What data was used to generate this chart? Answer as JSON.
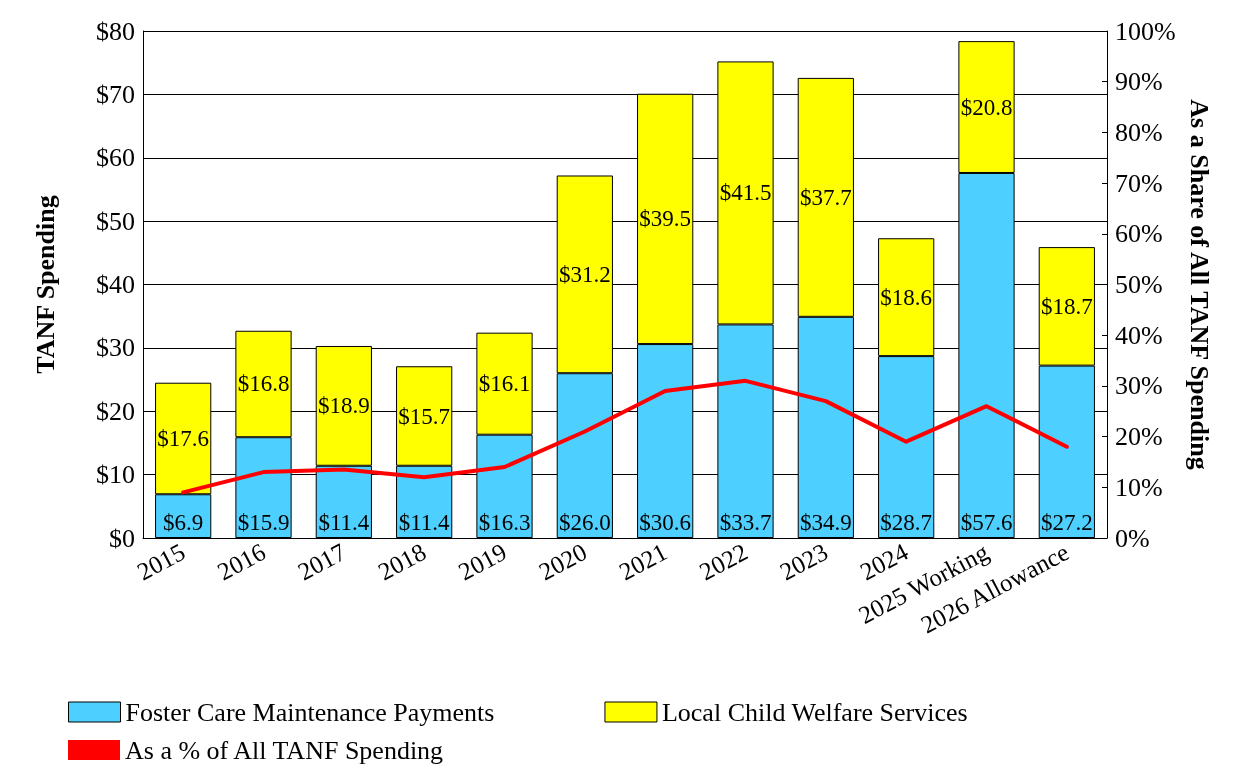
{
  "chart_data": {
    "type": "bar",
    "stacked": true,
    "categories": [
      "2015",
      "2016",
      "2017",
      "2018",
      "2019",
      "2020",
      "2021",
      "2022",
      "2023",
      "2024",
      "2025 Working",
      "2026 Allowance"
    ],
    "ylabel": "TANF Spending",
    "y2label": "As a Share of All TANF Spending",
    "ylim": [
      0,
      80
    ],
    "yticks": [
      {
        "value": 0,
        "label": "$0"
      },
      {
        "value": 10,
        "label": "$10"
      },
      {
        "value": 20,
        "label": "$20"
      },
      {
        "value": 30,
        "label": "$30"
      },
      {
        "value": 40,
        "label": "$40"
      },
      {
        "value": 50,
        "label": "$50"
      },
      {
        "value": 60,
        "label": "$60"
      },
      {
        "value": 70,
        "label": "$70"
      },
      {
        "value": 80,
        "label": "$80"
      }
    ],
    "y2lim": [
      0,
      100
    ],
    "y2ticks": [
      {
        "value": 0,
        "label": "0%"
      },
      {
        "value": 10,
        "label": "10%"
      },
      {
        "value": 20,
        "label": "20%"
      },
      {
        "value": 30,
        "label": "30%"
      },
      {
        "value": 40,
        "label": "40%"
      },
      {
        "value": 50,
        "label": "50%"
      },
      {
        "value": 60,
        "label": "60%"
      },
      {
        "value": 70,
        "label": "70%"
      },
      {
        "value": 80,
        "label": "80%"
      },
      {
        "value": 90,
        "label": "90%"
      },
      {
        "value": 100,
        "label": "100%"
      }
    ],
    "grid": "y",
    "legend": "bottom",
    "marker": "none",
    "series": [
      {
        "name": "Foster Care Maintenance Payments",
        "color": "#4dd0ff",
        "values": [
          6.9,
          15.9,
          11.4,
          11.4,
          16.3,
          26.0,
          30.6,
          33.7,
          34.9,
          28.7,
          57.6,
          27.2
        ],
        "value_labels": [
          "$6.9",
          "$15.9",
          "$11.4",
          "$11.4",
          "$16.3",
          "$26.0",
          "$30.6",
          "$33.7",
          "$34.9",
          "$28.7",
          "$57.6",
          "$27.2"
        ]
      },
      {
        "name": "Local Child Welfare Services",
        "color": "#ffff00",
        "values": [
          17.6,
          16.8,
          18.9,
          15.7,
          16.1,
          31.2,
          39.5,
          41.5,
          37.7,
          18.6,
          20.8,
          18.7
        ],
        "value_labels": [
          "$17.6",
          "$16.8",
          "$18.9",
          "$15.7",
          "$16.1",
          "$31.2",
          "$39.5",
          "$41.5",
          "$37.7",
          "$18.6",
          "$20.8",
          "$18.7"
        ]
      },
      {
        "name": "As a % of All TANF Spending",
        "type": "line",
        "axis": "y2",
        "color": "#ff0000",
        "values": [
          9,
          13,
          13.5,
          12,
          14,
          21,
          29,
          31,
          27,
          19,
          26,
          18
        ]
      }
    ]
  }
}
